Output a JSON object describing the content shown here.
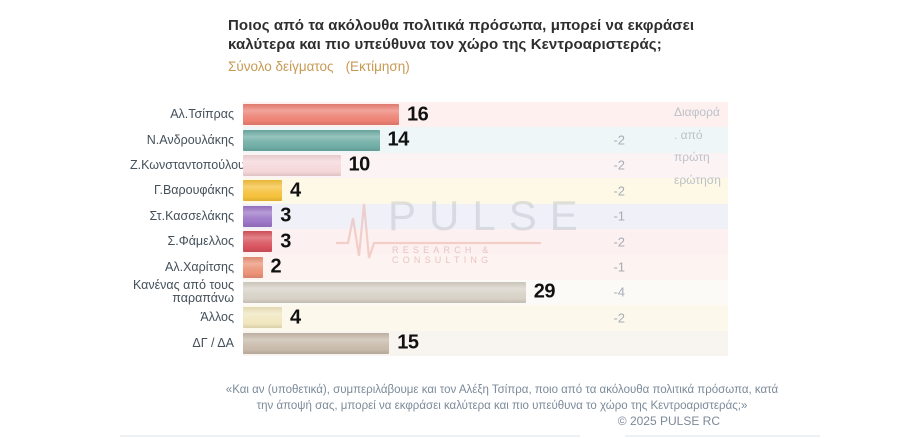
{
  "page": {
    "title": "Ποιος από τα ακόλουθα πολιτικά πρόσωπα, μπορεί να εκφράσει καλύτερα και πιο υπεύθυνα τον χώρο της Κεντροαριστεράς;",
    "subtitle_sample": "Σύνολο δείγματος",
    "subtitle_estimate": "(Εκτίμηση)",
    "subtitle_color": "#c79a54",
    "footer_quote": "«Και αν (υποθετικά), συμπεριλάβουμε και τον Αλέξη Τσίπρα, ποιο από τα ακόλουθα πολιτικά πρόσωπα, κατά την άποψή σας, μπορεί να εκφράσει καλύτερα και πιο υπεύθυνα το χώρο της Κεντροαριστεράς;»",
    "copyright": "© 2025 PULSE RC"
  },
  "diff_column": {
    "header_lines": "Διαφορά\n. από\nπρώτη\nερώτηση"
  },
  "watermark": {
    "name": "PULSE",
    "tagline": "RESEARCH & CONSULTING",
    "icon": "ekg-heartbeat-icon"
  },
  "chart_data": {
    "type": "bar",
    "orientation": "horizontal",
    "title": "Ποιος από τα ακόλουθα πολιτικά πρόσωπα, μπορεί να εκφράσει καλύτερα και πιο υπεύθυνα τον χώρο της Κεντροαριστεράς;",
    "subtitle": "Σύνολο δείγματος (Εκτίμηση)",
    "value_axis_range": [
      0,
      30
    ],
    "grid": false,
    "legend": false,
    "diff_column_header": "Διαφορά . από πρώτη ερώτηση",
    "rows": [
      {
        "label": "Αλ.Τσίπρας",
        "value": 16,
        "diff": "",
        "bar_color": "#ed8174",
        "stripe_color": "#fdf0ef"
      },
      {
        "label": "Ν.Ανδρουλάκης",
        "value": 14,
        "diff": "-2",
        "bar_color": "#6fada5",
        "stripe_color": "#eff6f7"
      },
      {
        "label": "Ζ.Κωνσταντοπούλου",
        "value": 10,
        "diff": "-2",
        "bar_color": "#f5d7d9",
        "stripe_color": "#fcf4f4"
      },
      {
        "label": "Γ.Βαρουφάκης",
        "value": 4,
        "diff": "-2",
        "bar_color": "#f5c13a",
        "stripe_color": "#fdf9e6"
      },
      {
        "label": "Στ.Κασσελάκης",
        "value": 3,
        "diff": "-1",
        "bar_color": "#9b75c6",
        "stripe_color": "#f0f1f8"
      },
      {
        "label": "Σ.Φάμελλος",
        "value": 3,
        "diff": "-2",
        "bar_color": "#d8525d",
        "stripe_color": "#fdf0f0"
      },
      {
        "label": "Αλ.Χαρίτσης",
        "value": 2,
        "diff": "-1",
        "bar_color": "#eb9176",
        "stripe_color": "#fdf3f1"
      },
      {
        "label": "Κανένας από τους παραπάνω",
        "value": 29,
        "diff": "-4",
        "bar_color": "#d7d1c6",
        "stripe_color": "#fbfaf7"
      },
      {
        "label": "Άλλος",
        "value": 4,
        "diff": "-2",
        "bar_color": "#f0e6be",
        "stripe_color": "#fcf9ec"
      },
      {
        "label": "ΔΓ / ΔΑ",
        "value": 15,
        "diff": "",
        "bar_color": "#c8b9a9",
        "stripe_color": "#f8f5f0"
      }
    ]
  }
}
